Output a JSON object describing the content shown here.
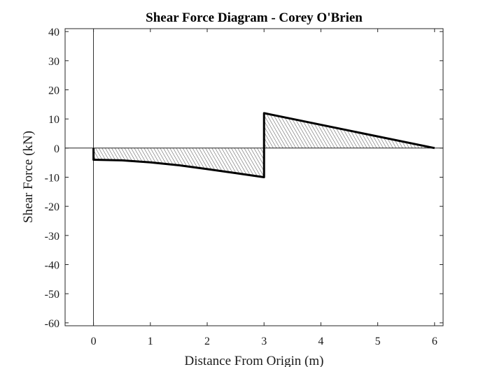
{
  "chart_data": {
    "type": "area",
    "title": "Shear Force Diagram - Corey O'Brien",
    "xlabel": "Distance From Origin (m)",
    "ylabel": "Shear Force (kN)",
    "xlim": [
      -0.5,
      6.15
    ],
    "ylim": [
      -61,
      41
    ],
    "xticks": [
      0,
      1,
      2,
      3,
      4,
      5,
      6
    ],
    "yticks": [
      40,
      30,
      20,
      10,
      0,
      -10,
      -20,
      -30,
      -40,
      -50,
      -60
    ],
    "grid": false,
    "fill": "hatched",
    "series": [
      {
        "name": "Shear Force",
        "x": [
          0,
          0,
          0.5,
          1,
          1.5,
          2,
          2.5,
          3,
          3,
          3,
          6,
          6
        ],
        "y": [
          0,
          -4,
          -4.2,
          -4.9,
          -5.9,
          -7.2,
          -8.6,
          -10,
          0,
          12,
          0,
          0
        ]
      }
    ]
  }
}
